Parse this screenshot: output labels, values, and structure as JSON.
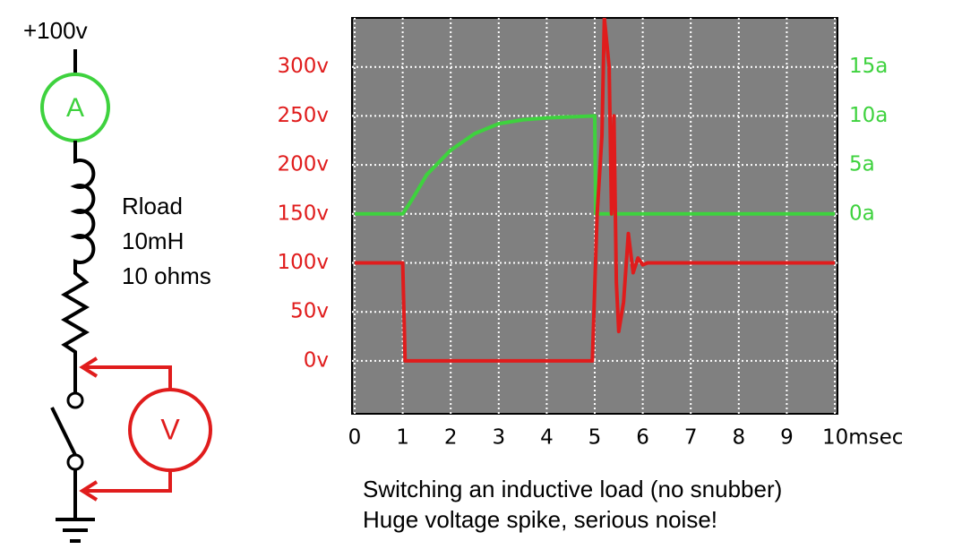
{
  "chart_data": {
    "type": "line",
    "xlim": [
      0,
      10
    ],
    "xticks": [
      0,
      1,
      2,
      3,
      4,
      5,
      6,
      7,
      8,
      9,
      {
        "value": 10,
        "label": "10msec"
      }
    ],
    "ylim": [
      -54,
      350
    ],
    "yticks": [
      {
        "value": 0,
        "label": "0v"
      },
      {
        "value": 50,
        "label": "50v"
      },
      {
        "value": 100,
        "label": "100v"
      },
      {
        "value": 150,
        "label": "150v"
      },
      {
        "value": 200,
        "label": "200v"
      },
      {
        "value": 250,
        "label": "250v"
      },
      {
        "value": 300,
        "label": "300v"
      }
    ],
    "y2lim": [
      -20.4,
      20
    ],
    "y2ticks": [
      {
        "value": 0,
        "label": "0a"
      },
      {
        "value": 5,
        "label": "5a"
      },
      {
        "value": 10,
        "label": "10a"
      },
      {
        "value": 15,
        "label": "15a"
      }
    ],
    "grid": true,
    "series": [
      {
        "color": "#e01c1c",
        "x": [
          0,
          1,
          1.05,
          4.95,
          5.05,
          5.15,
          5.2,
          5.3,
          5.35,
          5.4,
          5.45,
          5.5,
          5.6,
          5.7,
          5.8,
          5.9,
          6,
          6.1,
          10
        ],
        "values": [
          100,
          100,
          0,
          0,
          150,
          230,
          350,
          300,
          150,
          250,
          80,
          30,
          60,
          130,
          90,
          105,
          98,
          100,
          100
        ]
      },
      {
        "color": "#3ed23e",
        "axis": "y2",
        "x": [
          0,
          1,
          1.2,
          1.5,
          2,
          2.5,
          3,
          3.5,
          4,
          5,
          5.02,
          10
        ],
        "values": [
          0,
          0,
          1.5,
          4,
          6.5,
          8.2,
          9.2,
          9.6,
          9.8,
          10,
          0,
          0
        ]
      }
    ]
  },
  "circuit": {
    "supply": "+100v",
    "ammeter": "A",
    "load": [
      "Rload",
      "10mH",
      "10 ohms"
    ],
    "voltmeter": "V"
  },
  "caption": [
    "Switching an inductive load (no snubber)",
    "Huge voltage spike, serious noise!"
  ]
}
